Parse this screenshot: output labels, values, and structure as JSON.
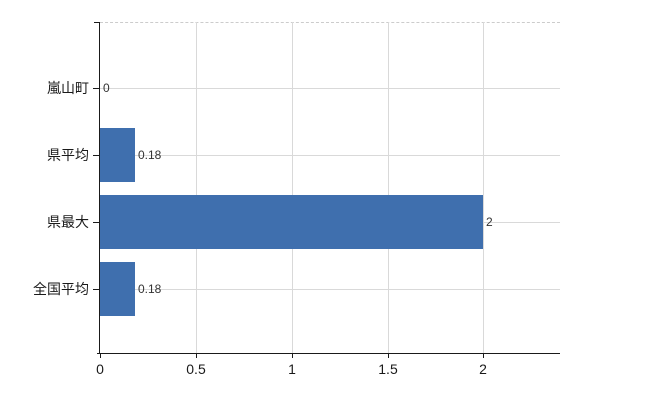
{
  "chart_data": {
    "type": "bar",
    "orientation": "horizontal",
    "title": "",
    "xlabel": "",
    "ylabel": "",
    "categories": [
      "嵐山町",
      "県平均",
      "県最大",
      "全国平均"
    ],
    "values": [
      0,
      0.18,
      2,
      0.18
    ],
    "value_labels": [
      "0",
      "0.18",
      "2",
      "0.18"
    ],
    "x_ticks": [
      0,
      0.5,
      1,
      1.5,
      2
    ],
    "x_tick_labels": [
      "0",
      "0.5",
      "1",
      "1.5",
      "2"
    ],
    "xlim": [
      0,
      2.4
    ],
    "grid": true,
    "legend": false,
    "colors": {
      "bar": "#3f6fae",
      "grid": "#d9d9d9",
      "axis": "#1a1a1a",
      "value_label": "#333333",
      "tick_label": "#1a1a1a",
      "top_border": "#cccccc",
      "background": "#ffffff"
    }
  }
}
